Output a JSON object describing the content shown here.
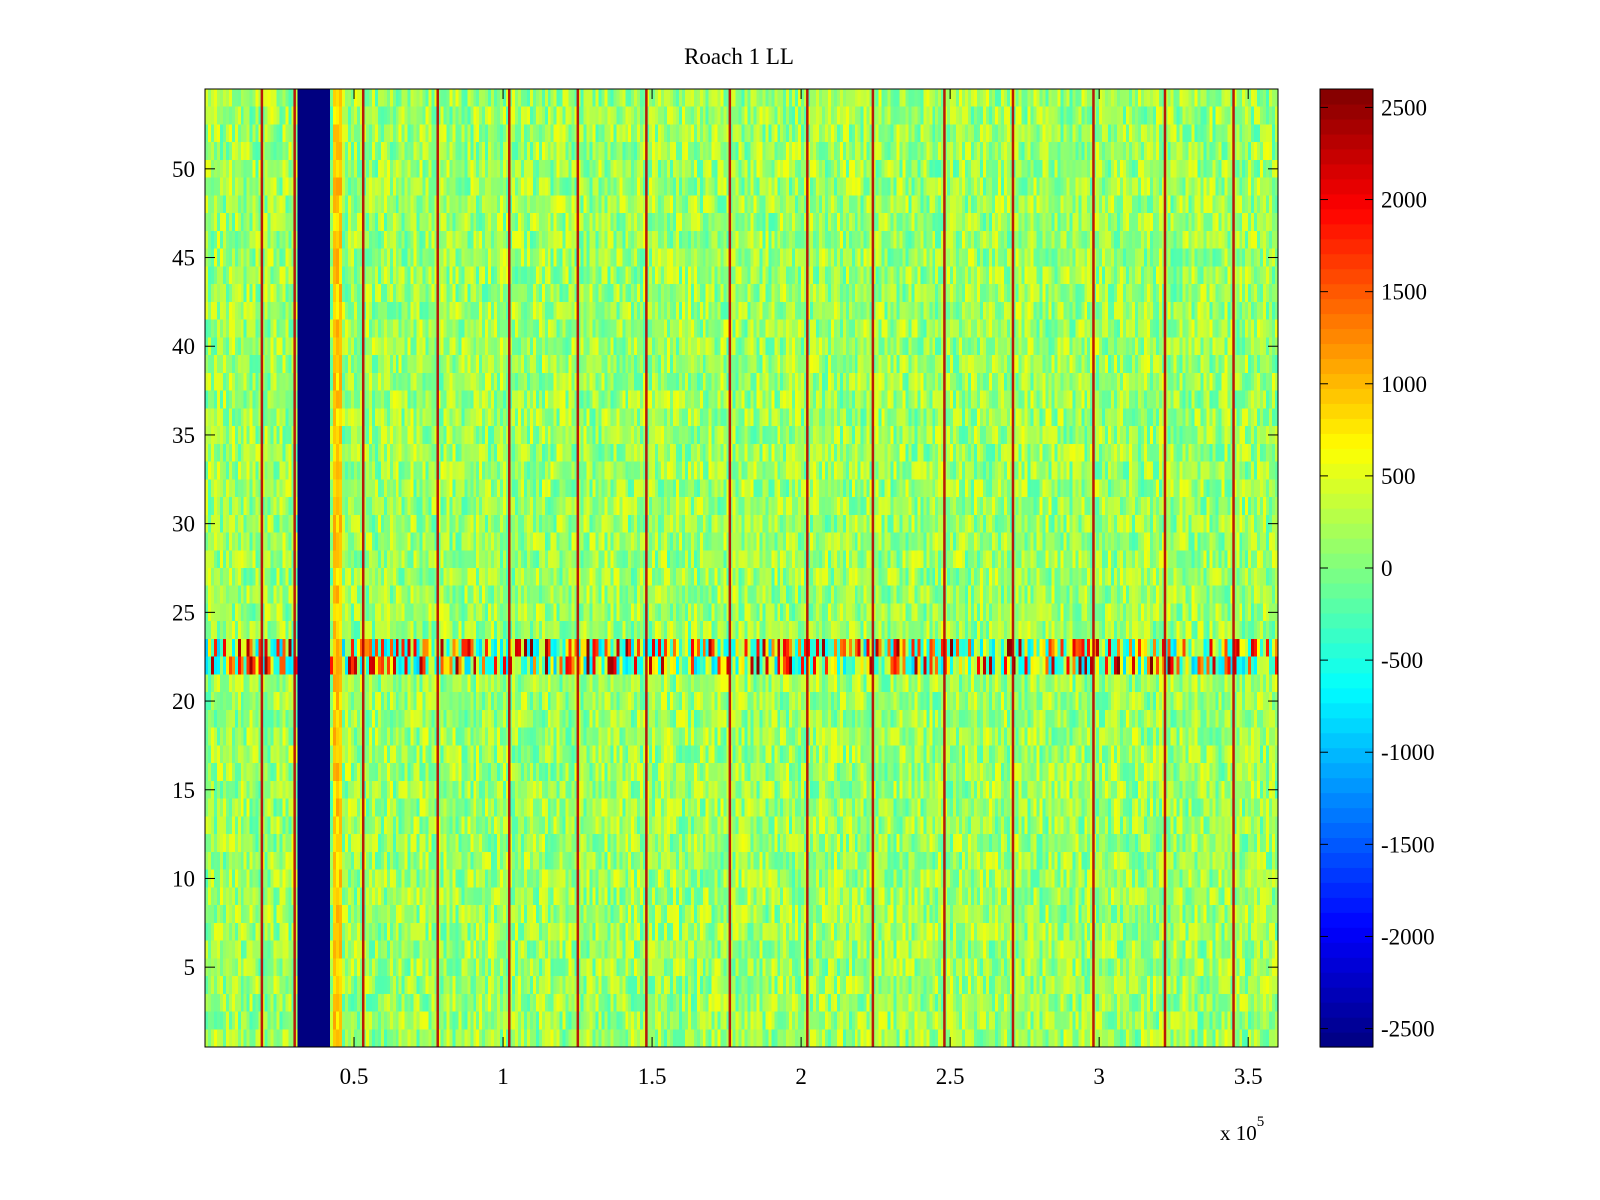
{
  "chart_data": {
    "type": "heatmap",
    "title": "Roach 1 LL",
    "xlabel": "",
    "ylabel": "",
    "x_multiplier_label": "x 10",
    "x_multiplier_exponent": "5",
    "xlim": [
      0,
      3.6
    ],
    "ylim": [
      0.5,
      54.5
    ],
    "xticks": [
      0.5,
      1,
      1.5,
      2,
      2.5,
      3,
      3.5
    ],
    "xtick_labels": [
      "0.5",
      "1",
      "1.5",
      "2",
      "2.5",
      "3",
      "3.5"
    ],
    "yticks": [
      5,
      10,
      15,
      20,
      25,
      30,
      35,
      40,
      45,
      50
    ],
    "ytick_labels": [
      "5",
      "10",
      "15",
      "20",
      "25",
      "30",
      "35",
      "40",
      "45",
      "50"
    ],
    "rows": 54,
    "colormap": "jet",
    "clim": [
      -2600,
      2600
    ],
    "colorbar_ticks": [
      2500,
      2000,
      1500,
      1000,
      500,
      0,
      -500,
      -1000,
      -1500,
      -2000,
      -2500
    ],
    "colorbar_labels": [
      "2500",
      "2000",
      "1500",
      "1000",
      "500",
      "0",
      "-500",
      "-1000",
      "-1500",
      "-2000",
      "-2500"
    ],
    "background_level": 150,
    "dead_band": {
      "x_start": 0.31,
      "x_end": 0.42,
      "value": -2600
    },
    "edge_band": {
      "x_start": 0.43,
      "x_end": 0.46,
      "value": 900
    },
    "spike_lines_x": [
      0.19,
      0.3,
      0.53,
      0.78,
      1.02,
      1.25,
      1.48,
      1.76,
      2.02,
      2.24,
      2.48,
      2.71,
      2.98,
      3.22,
      3.45
    ],
    "spike_value": 2300,
    "noisy_rows": [
      {
        "row": 22,
        "note": "high-variance row"
      },
      {
        "row": 23,
        "note": "high-variance row"
      }
    ],
    "noisy_row_range": [
      -900,
      2600
    ]
  }
}
